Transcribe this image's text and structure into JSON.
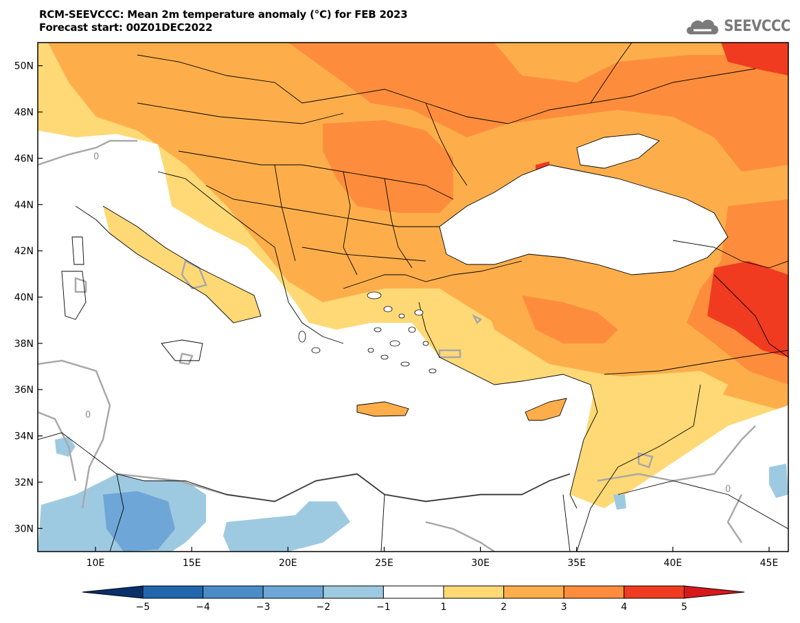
{
  "header": {
    "title_line1": "RCM-SEEVCCC: Mean 2m temperature anomaly (°C) for FEB 2023",
    "title_line2": "Forecast start: 00Z01DEC2022"
  },
  "logo": {
    "text": "SEEVCCC",
    "icon": "cloud-icon"
  },
  "map": {
    "lon_range": [
      7,
      46
    ],
    "lat_range": [
      29,
      51
    ],
    "lon_ticks": [
      "10E",
      "15E",
      "20E",
      "25E",
      "30E",
      "35E",
      "40E",
      "45E"
    ],
    "lat_ticks": [
      "50N",
      "48N",
      "46N",
      "44N",
      "42N",
      "40N",
      "38N",
      "36N",
      "34N",
      "32N",
      "30N"
    ],
    "contour_label": "0"
  },
  "colorbar": {
    "ticks": [
      "−5",
      "−4",
      "−3",
      "−2",
      "−1",
      "1",
      "2",
      "3",
      "4",
      "5"
    ],
    "colors": [
      "#08306b",
      "#2166ac",
      "#4a8cc7",
      "#6ea6d7",
      "#9ecae1",
      "#ffffff",
      "#fed976",
      "#fdae4b",
      "#fd8d3c",
      "#f03b20",
      "#d7191c"
    ]
  }
}
